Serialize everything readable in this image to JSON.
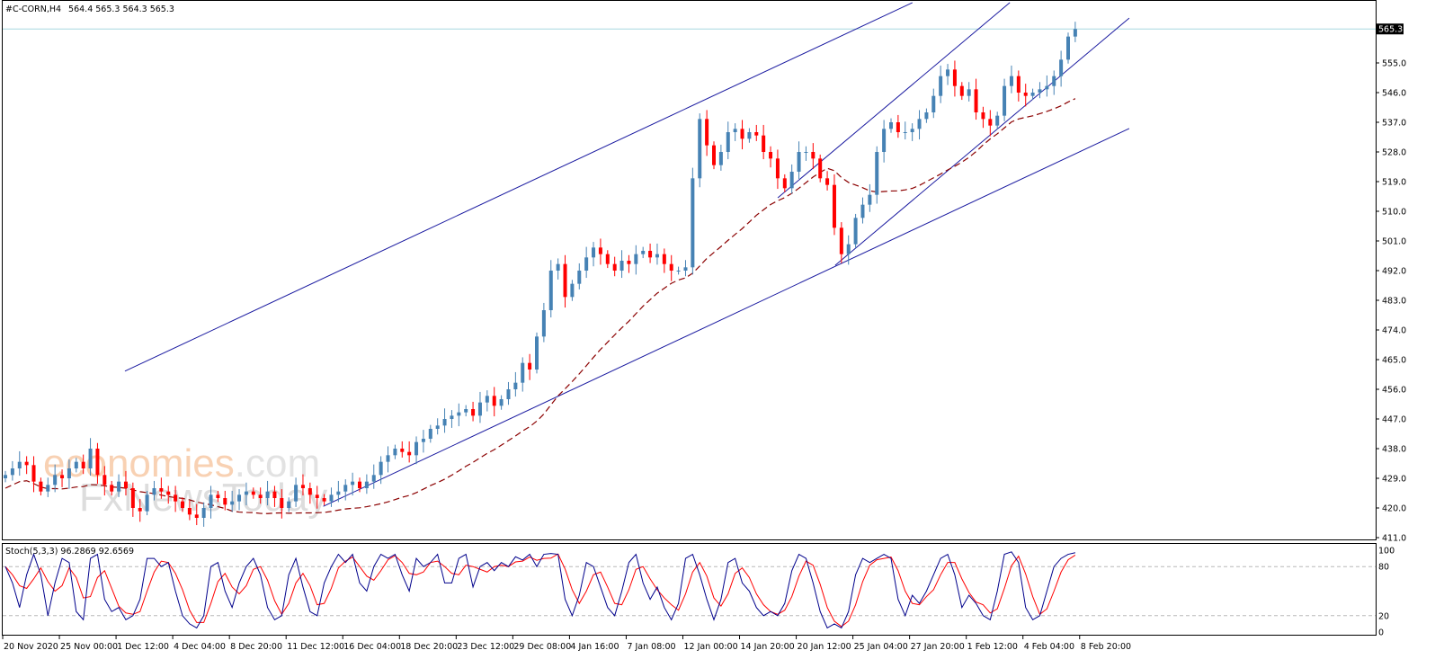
{
  "header": {
    "symbol": "#C-CORN,H4",
    "ohlc": "564.4 565.3 564.3 565.3"
  },
  "watermark": {
    "brand": "economies.com",
    "sub": "FxNewsToday"
  },
  "colors": {
    "bull": "#4682b4",
    "bear": "#ff0000",
    "ma": "#8b0000",
    "trend": "#1a1aa0",
    "bid_line": "#a8d8e0",
    "stoch_main": "#00008b",
    "stoch_signal": "#ff0000"
  },
  "chart_data": [
    {
      "type": "candlestick",
      "title": "#C-CORN,H4",
      "ylim": [
        411.0,
        565.3
      ],
      "y_ticks": [
        "555.0",
        "546.0",
        "537.0",
        "528.0",
        "519.0",
        "510.0",
        "501.0",
        "492.0",
        "483.0",
        "474.0",
        "465.0",
        "456.0",
        "447.0",
        "438.0",
        "429.0",
        "420.0",
        "411.0"
      ],
      "current_price": "565.3",
      "x_ticks": [
        "20 Nov 2020",
        "25 Nov 00:00",
        "1 Dec 12:00",
        "4 Dec 04:00",
        "8 Dec 20:00",
        "11 Dec 12:00",
        "16 Dec 04:00",
        "18 Dec 20:00",
        "23 Dec 12:00",
        "29 Dec 08:00",
        "4 Jan 16:00",
        "7 Jan 08:00",
        "12 Jan 00:00",
        "14 Jan 20:00",
        "20 Jan 12:00",
        "25 Jan 04:00",
        "27 Jan 20:00",
        "1 Feb 12:00",
        "4 Feb 04:00",
        "8 Feb 20:00"
      ],
      "bars_per_tick": 16,
      "bars_per_candle": 2,
      "closes": [
        430,
        432,
        434,
        433,
        428,
        425,
        427,
        430,
        429,
        432,
        434,
        432,
        438,
        430,
        427,
        425,
        428,
        426,
        420,
        419,
        424,
        426,
        425,
        424,
        422,
        420,
        418,
        417,
        420,
        424,
        423,
        421,
        422,
        424,
        425,
        424,
        423,
        425,
        423,
        420,
        422,
        427,
        426,
        424,
        423,
        422,
        424,
        425,
        427,
        428,
        426,
        428,
        430,
        434,
        436,
        438,
        437,
        436,
        440,
        441,
        444,
        445,
        447,
        448,
        449,
        450,
        448,
        452,
        454,
        451,
        453,
        456,
        458,
        464,
        462,
        472,
        480,
        492,
        494,
        484,
        488,
        492,
        496,
        499,
        497,
        494,
        492,
        495,
        494,
        497,
        498,
        496,
        497,
        494,
        492,
        492,
        493,
        520,
        538,
        530,
        524,
        528,
        534,
        535,
        532,
        534,
        533,
        528,
        526,
        520,
        517,
        522,
        528,
        528,
        526,
        520,
        518,
        505,
        497,
        500,
        508,
        512,
        515,
        528,
        535,
        537,
        534,
        534,
        535,
        538,
        540,
        545,
        551,
        553,
        548,
        545,
        547,
        540,
        538,
        536,
        539,
        548,
        551,
        546,
        545,
        546,
        547,
        548,
        551,
        556,
        563,
        565.3
      ],
      "moving_average": {
        "period_candles": 20,
        "style": "dashed"
      },
      "trendlines": [
        {
          "from": [
            34.5,
            461.5
          ],
          "to": [
            256.8,
            573.3
          ]
        },
        {
          "from": [
            90.5,
            420.5
          ],
          "to": [
            318.0,
            535.1
          ]
        },
        {
          "from": [
            235.0,
            493.6
          ],
          "to": [
            318.0,
            568.6
          ]
        },
        {
          "from": [
            218.8,
            514.1
          ],
          "to": [
            284.3,
            573.3
          ]
        }
      ]
    },
    {
      "type": "line",
      "title": "Stoch(5,3,3) 96.2869 92.6569",
      "ylim": [
        0,
        100
      ],
      "y_ticks": [
        "100",
        "80",
        "20",
        "0"
      ],
      "levels": [
        80,
        20
      ],
      "main": [
        80,
        60,
        30,
        70,
        95,
        70,
        20,
        60,
        90,
        85,
        25,
        15,
        90,
        95,
        40,
        25,
        30,
        15,
        20,
        40,
        90,
        90,
        80,
        85,
        50,
        20,
        10,
        5,
        20,
        80,
        85,
        50,
        30,
        60,
        80,
        90,
        70,
        30,
        15,
        20,
        70,
        90,
        55,
        25,
        20,
        60,
        80,
        95,
        85,
        95,
        60,
        50,
        80,
        95,
        90,
        95,
        70,
        50,
        90,
        80,
        85,
        95,
        60,
        60,
        90,
        95,
        55,
        80,
        85,
        75,
        85,
        80,
        92,
        88,
        95,
        80,
        95,
        96,
        95,
        40,
        20,
        45,
        85,
        80,
        55,
        30,
        20,
        50,
        85,
        95,
        60,
        40,
        55,
        30,
        15,
        35,
        90,
        95,
        70,
        40,
        15,
        40,
        85,
        90,
        60,
        50,
        30,
        20,
        25,
        20,
        35,
        75,
        95,
        90,
        60,
        25,
        5,
        10,
        5,
        25,
        70,
        90,
        85,
        90,
        95,
        90,
        40,
        20,
        45,
        35,
        50,
        70,
        90,
        95,
        70,
        30,
        45,
        35,
        20,
        15,
        50,
        95,
        98,
        85,
        30,
        15,
        20,
        50,
        80,
        90,
        95,
        97
      ],
      "signal_period": 3
    }
  ]
}
